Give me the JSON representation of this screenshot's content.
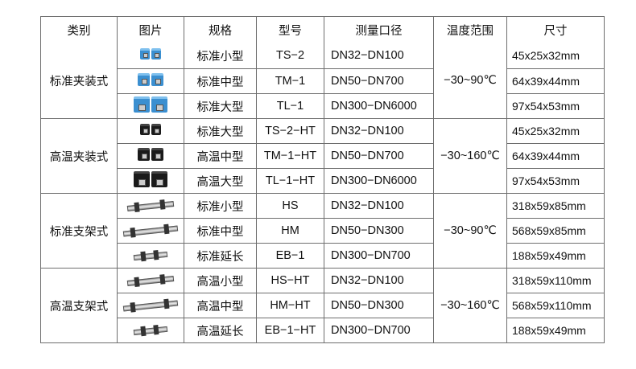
{
  "headers": [
    "类别",
    "图片",
    "规格",
    "型号",
    "测量口径",
    "温度范围",
    "尺寸"
  ],
  "groups": [
    {
      "category": "标准夹装式",
      "temp": "−30~90℃",
      "pic": "blue-clamp-sensor",
      "rows": [
        {
          "spec": "标准小型",
          "model": "TS−2",
          "range": "DN32−DN100",
          "size": "45x25x32mm"
        },
        {
          "spec": "标准中型",
          "model": "TM−1",
          "range": "DN50−DN700",
          "size": "64x39x44mm"
        },
        {
          "spec": "标准大型",
          "model": "TL−1",
          "range": "DN300−DN6000",
          "size": "97x54x53mm"
        }
      ]
    },
    {
      "category": "高温夹装式",
      "temp": "−30~160℃",
      "pic": "black-clamp-sensor",
      "rows": [
        {
          "spec": "标准大型",
          "model": "TS−2−HT",
          "range": "DN32−DN100",
          "size": "45x25x32mm"
        },
        {
          "spec": "高温中型",
          "model": "TM−1−HT",
          "range": "DN50−DN700",
          "size": "64x39x44mm"
        },
        {
          "spec": "高温大型",
          "model": "TL−1−HT",
          "range": "DN300−DN6000",
          "size": "97x54x53mm"
        }
      ]
    },
    {
      "category": "标准支架式",
      "temp": "−30~90℃",
      "pic": "rail-mount-sensor",
      "rows": [
        {
          "spec": "标准小型",
          "model": "HS",
          "range": "DN32−DN100",
          "size": "318x59x85mm"
        },
        {
          "spec": "标准中型",
          "model": "HM",
          "range": "DN50−DN300",
          "size": "568x59x85mm"
        },
        {
          "spec": "标准延长",
          "model": "EB−1",
          "range": "DN300−DN700",
          "size": "188x59x49mm"
        }
      ]
    },
    {
      "category": "高温支架式",
      "temp": "−30~160℃",
      "pic": "ht-rail-mount-sensor",
      "rows": [
        {
          "spec": "高温小型",
          "model": "HS−HT",
          "range": "DN32−DN100",
          "size": "318x59x110mm"
        },
        {
          "spec": "高温中型",
          "model": "HM−HT",
          "range": "DN50−DN300",
          "size": "568x59x110mm"
        },
        {
          "spec": "高温延长",
          "model": "EB−1−HT",
          "range": "DN300−DN700",
          "size": "188x59x49mm"
        }
      ]
    }
  ],
  "colors": {
    "blue_sensor": "#3b8fd0",
    "black_sensor": "#1a1a1a",
    "border": "#6e6e6e"
  }
}
